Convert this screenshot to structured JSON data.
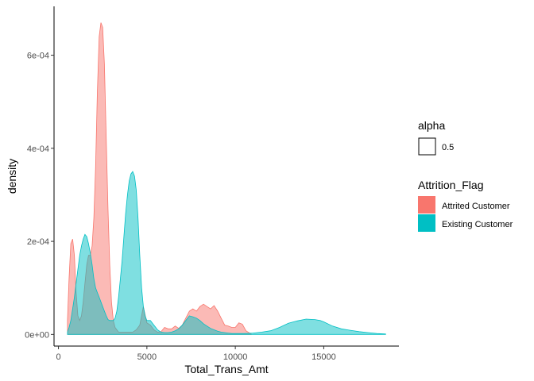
{
  "chart_data": {
    "type": "area",
    "xlabel": "Total_Trans_Amt",
    "ylabel": "density",
    "xlim": [
      -250,
      19250
    ],
    "ylim": [
      -2.5e-05,
      0.000705
    ],
    "x_ticks": [
      0,
      5000,
      10000,
      15000
    ],
    "x_tick_labels": [
      "0",
      "5000",
      "10000",
      "15000"
    ],
    "y_ticks": [
      0,
      0.0002,
      0.0004,
      0.0006
    ],
    "y_tick_labels": [
      "0e+00",
      "2e-04",
      "4e-04",
      "6e-04"
    ],
    "grid": false,
    "fill_alpha": 0.5,
    "legend_position": "right",
    "legends": [
      {
        "title": "alpha",
        "items": [
          {
            "label": "0.5",
            "style": "outline"
          }
        ]
      },
      {
        "title": "Attrition_Flag",
        "items": [
          {
            "label": "Attrited Customer",
            "color": "#F8766D"
          },
          {
            "label": "Existing Customer",
            "color": "#00BFC4"
          }
        ]
      }
    ],
    "series": [
      {
        "name": "Attrited Customer",
        "color": "#F8766D",
        "x": [
          510,
          600,
          700,
          800,
          900,
          1000,
          1100,
          1200,
          1300,
          1400,
          1500,
          1600,
          1700,
          1800,
          1900,
          2000,
          2100,
          2200,
          2300,
          2400,
          2500,
          2600,
          2700,
          2800,
          2900,
          3000,
          3100,
          3200,
          3300,
          3400,
          3500,
          3600,
          3800,
          4000,
          4200,
          4400,
          4600,
          4800,
          5000,
          5200,
          5400,
          5600,
          5800,
          6000,
          6200,
          6400,
          6600,
          6800,
          7000,
          7200,
          7400,
          7600,
          7800,
          8000,
          8200,
          8400,
          8600,
          8800,
          9000,
          9200,
          9400,
          9600,
          9800,
          10000,
          10200,
          10400,
          10600,
          10900
        ],
        "y": [
          3e-05,
          0.00012,
          0.000195,
          0.000205,
          0.00017,
          9e-05,
          4e-05,
          3e-05,
          4e-05,
          7e-05,
          0.00011,
          0.00015,
          0.00017,
          0.00017,
          0.00019,
          0.00025,
          0.00036,
          0.00052,
          0.00064,
          0.00067,
          0.00066,
          0.00058,
          0.00042,
          0.00027,
          0.00015,
          7e-05,
          3e-05,
          1.5e-05,
          1e-05,
          5e-06,
          5e-06,
          5e-06,
          5e-06,
          5e-06,
          5e-06,
          1e-05,
          2e-05,
          6e-05,
          2.5e-05,
          2e-05,
          1e-05,
          5e-06,
          6e-06,
          1.5e-05,
          1.2e-05,
          1.2e-05,
          1.8e-05,
          1.3e-05,
          2e-05,
          3.5e-05,
          5e-05,
          5.5e-05,
          5e-05,
          6e-05,
          6.5e-05,
          6e-05,
          5.5e-05,
          6.2e-05,
          5e-05,
          3.5e-05,
          2e-05,
          1.8e-05,
          1.5e-05,
          1.5e-05,
          2.5e-05,
          2.2e-05,
          8e-06,
          1e-06
        ]
      },
      {
        "name": "Existing Customer",
        "color": "#00BFC4",
        "x": [
          510,
          600,
          700,
          800,
          900,
          1000,
          1100,
          1200,
          1300,
          1400,
          1500,
          1600,
          1700,
          1800,
          1900,
          2000,
          2100,
          2200,
          2300,
          2400,
          2500,
          2600,
          2700,
          2800,
          2900,
          3000,
          3100,
          3200,
          3300,
          3400,
          3500,
          3600,
          3700,
          3800,
          3900,
          4000,
          4100,
          4200,
          4300,
          4400,
          4500,
          4600,
          4700,
          4800,
          4900,
          5000,
          5100,
          5200,
          5300,
          5400,
          5500,
          5600,
          5800,
          6000,
          6200,
          6400,
          6600,
          6800,
          7000,
          7200,
          7400,
          7600,
          7800,
          8000,
          8200,
          8400,
          8600,
          8800,
          9000,
          9200,
          9400,
          9600,
          9800,
          10000,
          10500,
          11000,
          11500,
          12000,
          12500,
          13000,
          13500,
          14000,
          14500,
          14800,
          15000,
          15500,
          16000,
          16500,
          17000,
          17500,
          18000,
          18500
        ],
        "y": [
          5e-06,
          1.5e-05,
          3e-05,
          5.5e-05,
          8e-05,
          0.00011,
          0.00014,
          0.00017,
          0.00019,
          0.000205,
          0.000215,
          0.00021,
          0.000195,
          0.000175,
          0.00015,
          0.00012,
          0.0001,
          9e-05,
          8e-05,
          7e-05,
          6e-05,
          5e-05,
          4e-05,
          3.2e-05,
          3e-05,
          3e-05,
          3e-05,
          3.5e-05,
          5e-05,
          8e-05,
          0.00012,
          0.00016,
          0.00021,
          0.00026,
          0.0003,
          0.00033,
          0.000345,
          0.00035,
          0.00034,
          0.00031,
          0.00025,
          0.00017,
          0.0001,
          6e-05,
          4e-05,
          3e-05,
          3e-05,
          3e-05,
          2.5e-05,
          2e-05,
          1.5e-05,
          1e-05,
          5e-06,
          4e-06,
          4e-06,
          5e-06,
          8e-06,
          1.2e-05,
          2e-05,
          3e-05,
          4e-05,
          3.8e-05,
          3.5e-05,
          3e-05,
          2.3e-05,
          1.8e-05,
          1.3e-05,
          1e-05,
          7e-06,
          5e-06,
          4e-06,
          3e-06,
          2e-06,
          2e-06,
          2e-06,
          3e-06,
          5e-06,
          8e-06,
          1.5e-05,
          2.4e-05,
          2.9e-05,
          3.3e-05,
          3.2e-05,
          3e-05,
          2.7e-05,
          1.8e-05,
          1.2e-05,
          9e-06,
          6e-06,
          4e-06,
          2e-06,
          1e-06
        ]
      }
    ]
  }
}
